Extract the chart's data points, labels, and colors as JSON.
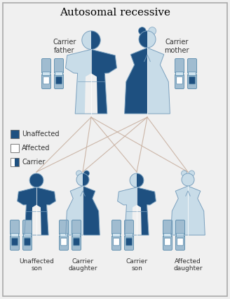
{
  "title": "Autosomal recessive",
  "title_fontsize": 11,
  "bg_color": "#f0f0f0",
  "border_color": "#aaaaaa",
  "dark_blue": "#1e5080",
  "light_blue": "#a0bcd0",
  "mid_blue": "#6090b0",
  "very_light_blue": "#c8dce8",
  "white": "#ffffff",
  "line_color": "#c8b0a0",
  "parent_labels": [
    "Carrier\nfather",
    "Carrier\nmother"
  ],
  "child_labels": [
    "Unaffected\nson",
    "Carrier\ndaughter",
    "Carrier\nson",
    "Affected\ndaughter"
  ],
  "legend_labels": [
    "Unaffected",
    "Affected",
    "Carrier"
  ]
}
